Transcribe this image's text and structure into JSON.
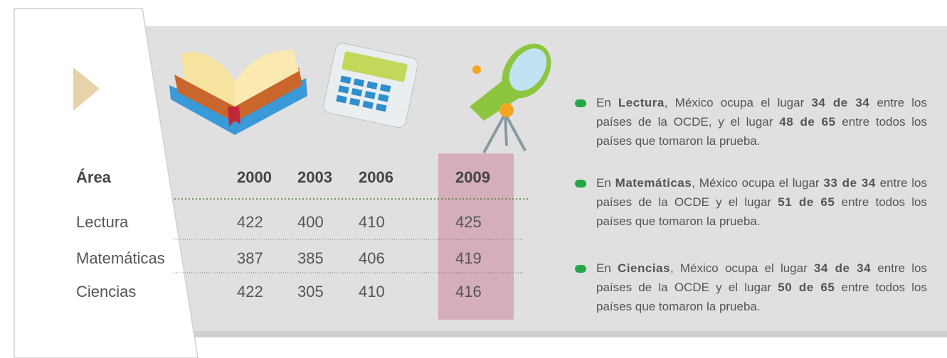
{
  "table": {
    "header": [
      "Área",
      "2000",
      "2003",
      "2006",
      "2009"
    ],
    "rows": [
      [
        "Lectura",
        422,
        400,
        410,
        425
      ],
      [
        "Matemáticas",
        387,
        385,
        406,
        419
      ],
      [
        "Ciencias",
        422,
        305,
        410,
        416
      ]
    ]
  },
  "notes": [
    [
      "En ",
      "Lectura",
      ", México ocupa el lugar ",
      "34 de 34",
      " entre los países de la OCDE, y el lugar ",
      "48 de 65",
      " entre todos los países que tomaron la prueba."
    ],
    [
      "En ",
      "Matemáticas",
      ", México ocupa el lugar ",
      "33 de 34",
      " entre los países de la OCDE y el lugar ",
      "51 de 65",
      " entre todos los países que tomaron la prueba."
    ],
    [
      "En ",
      "Ciencias",
      ", México ocupa el lugar ",
      "34 de 34",
      " entre los países de la OCDE y el lugar ",
      "50 de 65",
      " entre todos los países que tomaron la prueba."
    ]
  ]
}
